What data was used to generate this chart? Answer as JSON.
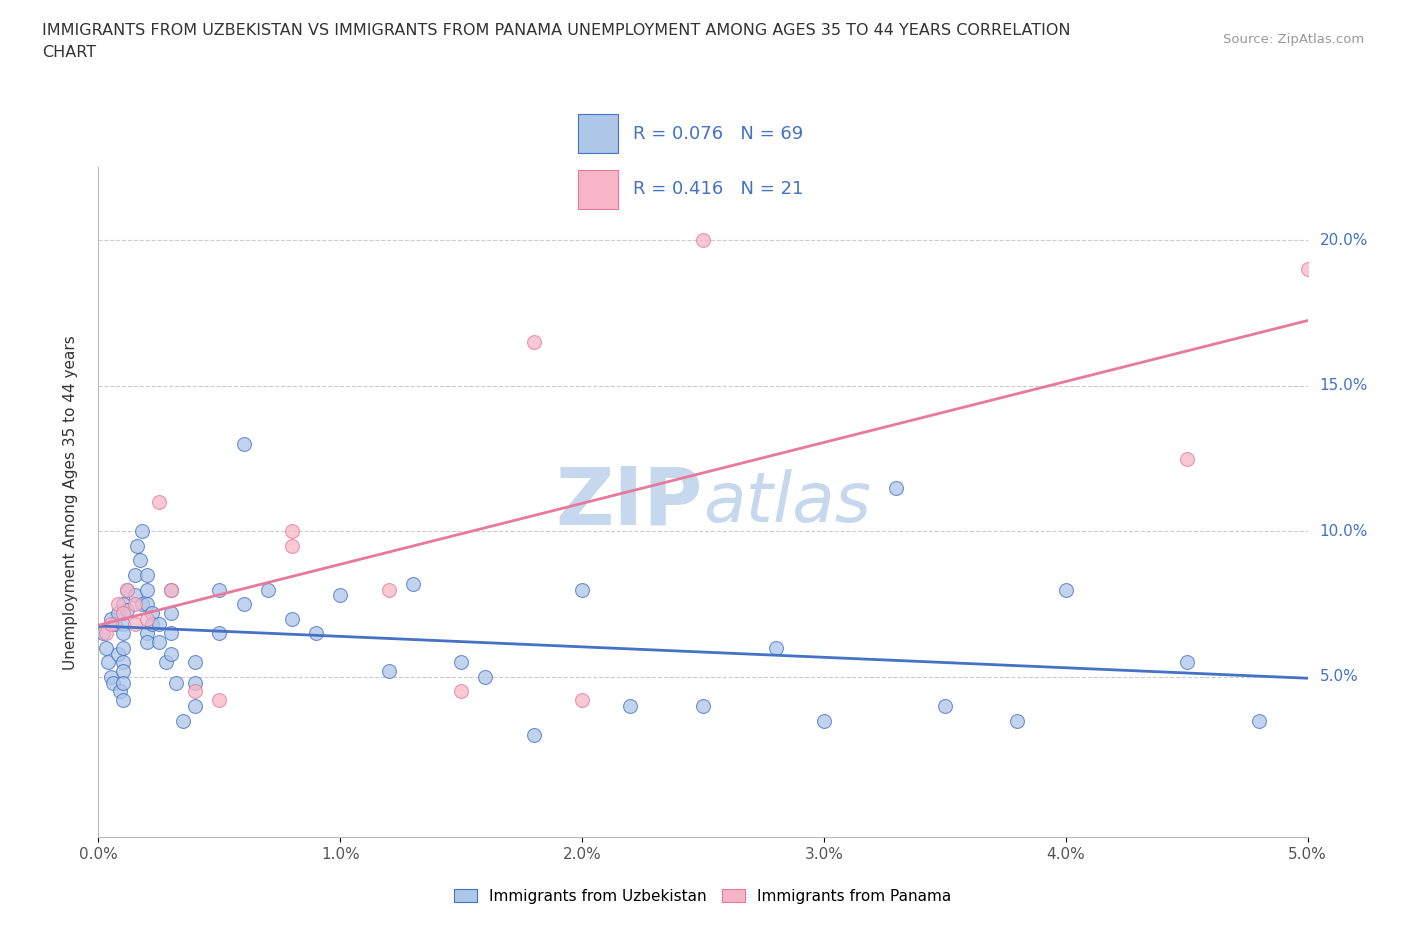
{
  "title_line1": "IMMIGRANTS FROM UZBEKISTAN VS IMMIGRANTS FROM PANAMA UNEMPLOYMENT AMONG AGES 35 TO 44 YEARS CORRELATION",
  "title_line2": "CHART",
  "source": "Source: ZipAtlas.com",
  "ylabel": "Unemployment Among Ages 35 to 44 years",
  "legend_label1": "Immigrants from Uzbekistan",
  "legend_label2": "Immigrants from Panama",
  "R1": 0.076,
  "N1": 69,
  "R2": 0.416,
  "N2": 21,
  "color1": "#aec6e8",
  "color2": "#f7b6c8",
  "trendline1_color": "#4472c4",
  "trendline2_color": "#e8799a",
  "watermark_color": "#c5d8ed",
  "xlim": [
    0.0,
    0.05
  ],
  "ylim": [
    -0.005,
    0.225
  ],
  "xticks": [
    0.0,
    0.01,
    0.02,
    0.03,
    0.04,
    0.05
  ],
  "yticks": [
    0.05,
    0.1,
    0.15,
    0.2
  ],
  "scatter1_x": [
    0.0002,
    0.0003,
    0.0004,
    0.0005,
    0.0005,
    0.0006,
    0.0007,
    0.0008,
    0.0008,
    0.0009,
    0.001,
    0.001,
    0.001,
    0.001,
    0.001,
    0.001,
    0.001,
    0.001,
    0.0012,
    0.0012,
    0.0015,
    0.0015,
    0.0016,
    0.0017,
    0.0018,
    0.0018,
    0.002,
    0.002,
    0.002,
    0.002,
    0.002,
    0.0022,
    0.0022,
    0.0025,
    0.0025,
    0.0028,
    0.003,
    0.003,
    0.003,
    0.003,
    0.0032,
    0.0035,
    0.004,
    0.004,
    0.004,
    0.005,
    0.005,
    0.006,
    0.006,
    0.007,
    0.008,
    0.009,
    0.01,
    0.012,
    0.013,
    0.015,
    0.016,
    0.018,
    0.02,
    0.022,
    0.025,
    0.028,
    0.03,
    0.033,
    0.035,
    0.038,
    0.04,
    0.045,
    0.048
  ],
  "scatter1_y": [
    0.065,
    0.06,
    0.055,
    0.07,
    0.05,
    0.048,
    0.068,
    0.072,
    0.058,
    0.045,
    0.075,
    0.068,
    0.065,
    0.06,
    0.055,
    0.052,
    0.048,
    0.042,
    0.08,
    0.073,
    0.085,
    0.078,
    0.095,
    0.09,
    0.1,
    0.075,
    0.085,
    0.08,
    0.075,
    0.065,
    0.062,
    0.072,
    0.068,
    0.068,
    0.062,
    0.055,
    0.08,
    0.072,
    0.065,
    0.058,
    0.048,
    0.035,
    0.055,
    0.048,
    0.04,
    0.08,
    0.065,
    0.13,
    0.075,
    0.08,
    0.07,
    0.065,
    0.078,
    0.052,
    0.082,
    0.055,
    0.05,
    0.03,
    0.08,
    0.04,
    0.04,
    0.06,
    0.035,
    0.115,
    0.04,
    0.035,
    0.08,
    0.055,
    0.035
  ],
  "scatter2_x": [
    0.0003,
    0.0005,
    0.0008,
    0.001,
    0.0012,
    0.0015,
    0.0015,
    0.002,
    0.0025,
    0.003,
    0.004,
    0.005,
    0.008,
    0.008,
    0.012,
    0.015,
    0.018,
    0.02,
    0.025,
    0.045,
    0.05
  ],
  "scatter2_y": [
    0.065,
    0.068,
    0.075,
    0.072,
    0.08,
    0.075,
    0.068,
    0.07,
    0.11,
    0.08,
    0.045,
    0.042,
    0.095,
    0.1,
    0.08,
    0.045,
    0.165,
    0.042,
    0.2,
    0.125,
    0.19
  ]
}
